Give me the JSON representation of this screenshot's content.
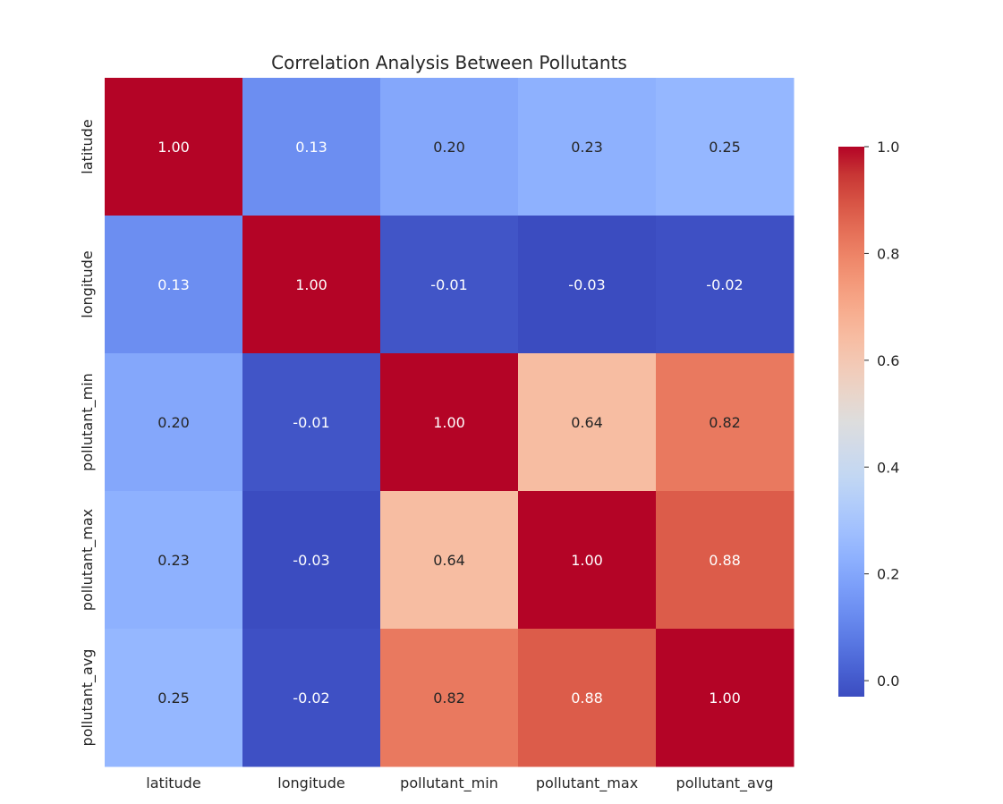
{
  "chart_data": {
    "type": "heatmap",
    "title": "Correlation Analysis Between Pollutants",
    "xlabel": "",
    "ylabel": "",
    "x_categories": [
      "latitude",
      "longitude",
      "pollutant_min",
      "pollutant_max",
      "pollutant_avg"
    ],
    "y_categories": [
      "latitude",
      "longitude",
      "pollutant_min",
      "pollutant_max",
      "pollutant_avg"
    ],
    "values": [
      [
        1.0,
        0.13,
        0.2,
        0.23,
        0.25
      ],
      [
        0.13,
        1.0,
        -0.01,
        -0.03,
        -0.02
      ],
      [
        0.2,
        -0.01,
        1.0,
        0.64,
        0.82
      ],
      [
        0.23,
        -0.03,
        0.64,
        1.0,
        0.88
      ],
      [
        0.25,
        -0.02,
        0.82,
        0.88,
        1.0
      ]
    ],
    "value_format": "0.00",
    "colormap": "coolwarm",
    "colorbar": {
      "range": [
        -0.03,
        1.0
      ],
      "ticks": [
        "0.0",
        "0.2",
        "0.4",
        "0.6",
        "0.8",
        "1.0"
      ],
      "placement": "right"
    },
    "grid": false
  }
}
